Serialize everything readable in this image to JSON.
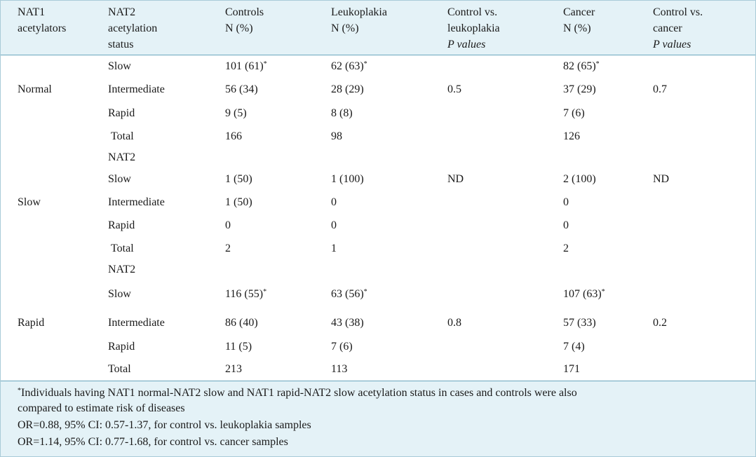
{
  "headers": {
    "c1": [
      "NAT1",
      "acetylators"
    ],
    "c2": [
      "NAT2",
      "acetylation",
      "status"
    ],
    "c3": [
      "Controls",
      "N (%)"
    ],
    "c4": [
      "Leukoplakia",
      "N (%)"
    ],
    "c5": [
      "Control vs.",
      "leukoplakia",
      "P values"
    ],
    "c6": [
      "Cancer",
      "N (%)"
    ],
    "c7": [
      "Control vs.",
      "cancer",
      "P values"
    ]
  },
  "groups": [
    {
      "label": "Normal",
      "pval_leuk": "0.5",
      "pval_cancer": "0.7",
      "rows": [
        {
          "status": "Slow",
          "controls": "101 (61)",
          "controls_sup": "*",
          "leuk": "62 (63)",
          "leuk_sup": "*",
          "cancer": "82 (65)",
          "cancer_sup": "*"
        },
        {
          "status": "Intermediate",
          "controls": "56 (34)",
          "leuk": "28 (29)",
          "cancer": "37 (29)"
        },
        {
          "status": "Rapid",
          "controls": "9 (5)",
          "leuk": "8 (8)",
          "cancer": "7 (6)"
        },
        {
          "status": "Total",
          "controls": "166",
          "leuk": "98",
          "cancer": "126"
        }
      ]
    },
    {
      "label": "Slow",
      "sublabel": "NAT2",
      "pval_leuk": "ND",
      "pval_cancer": "ND",
      "rows": [
        {
          "status": "Slow",
          "controls": "1 (50)",
          "leuk": "1 (100)",
          "cancer": "2 (100)"
        },
        {
          "status": "Intermediate",
          "controls": "1 (50)",
          "leuk": "0",
          "cancer": "0"
        },
        {
          "status": "Rapid",
          "controls": "0",
          "leuk": "0",
          "cancer": "0"
        },
        {
          "status": "Total",
          "controls": "2",
          "leuk": "1",
          "cancer": "2"
        }
      ]
    },
    {
      "label": "Rapid",
      "sublabel": "NAT2",
      "pval_leuk": "0.8",
      "pval_cancer": "0.2",
      "rows": [
        {
          "status": "Slow",
          "controls": "116 (55)",
          "controls_sup": "*",
          "leuk": "63 (56)",
          "leuk_sup": "*",
          "cancer": "107 (63)",
          "cancer_sup": "*"
        },
        {
          "status": "Intermediate",
          "controls": "86 (40)",
          "leuk": "43 (38)",
          "cancer": "57 (33)"
        },
        {
          "status": "Rapid",
          "controls": "11 (5)",
          "leuk": "7 (6)",
          "cancer": "7 (4)"
        },
        {
          "status": "Total",
          "controls": "213",
          "leuk": "113",
          "cancer": "171"
        }
      ]
    }
  ],
  "footnotes": {
    "mark": "*",
    "line1": "Individuals having NAT1 normal-NAT2 slow and NAT1 rapid-NAT2 slow acetylation status in cases and controls were also",
    "line2": "compared to estimate risk of diseases",
    "line3": "OR=0.88, 95% CI: 0.57-1.37, for control vs. leukoplakia samples",
    "line4": "OR=1.14, 95% CI: 0.77-1.68, for control vs. cancer samples"
  }
}
